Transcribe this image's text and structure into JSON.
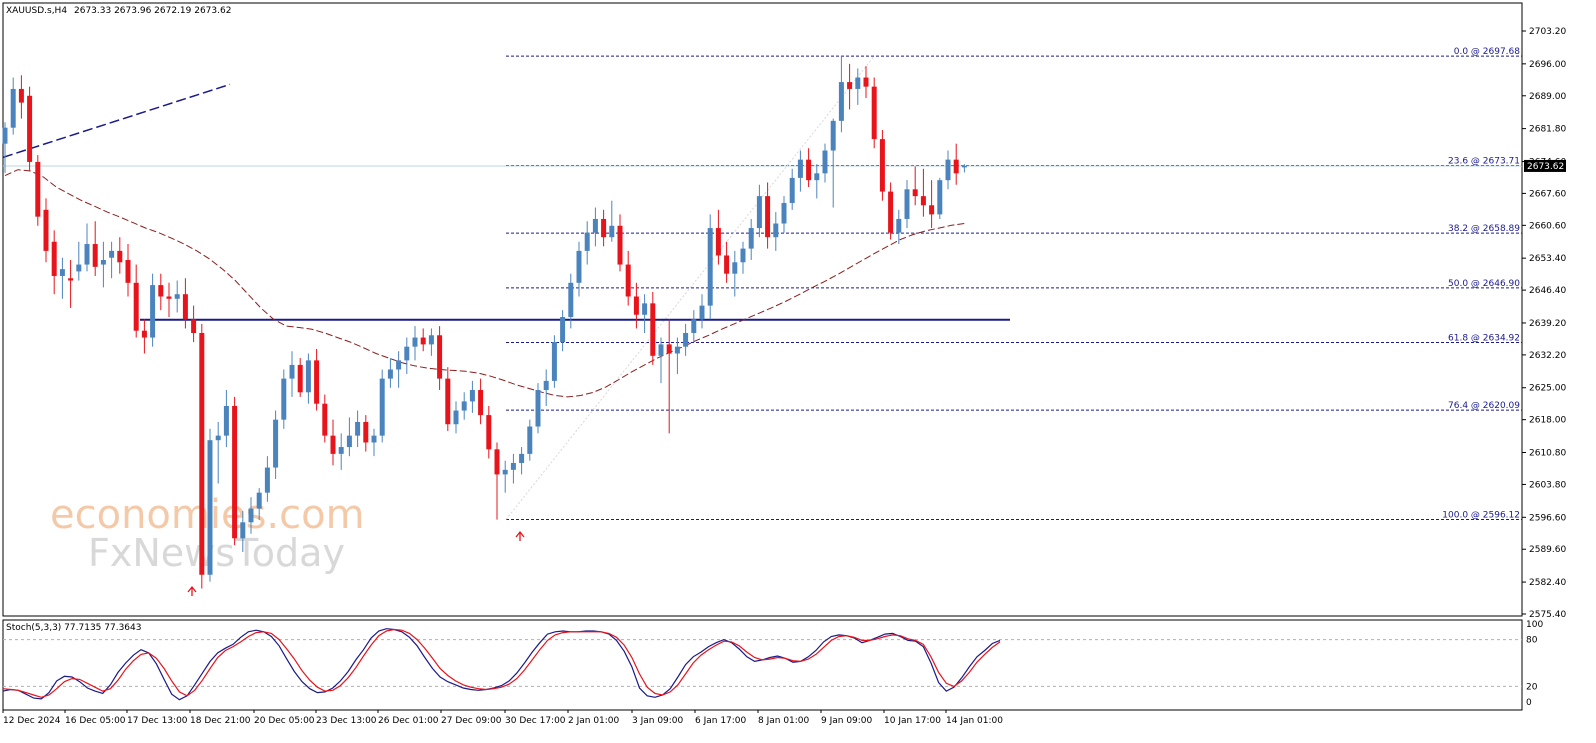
{
  "chart_data": [
    {
      "type": "candlestick",
      "symbol_label": "XAUUSD.s,H4",
      "ohlc_label": "2673.33 2673.96 2672.19 2673.62",
      "y_ticks": [
        "2703.20",
        "2696.00",
        "2689.00",
        "2681.80",
        "2674.60",
        "2667.60",
        "2660.60",
        "2653.40",
        "2646.40",
        "2639.20",
        "2632.20",
        "2625.00",
        "2618.00",
        "2610.80",
        "2603.80",
        "2596.60",
        "2589.60",
        "2582.40",
        "2575.40"
      ],
      "ylim": [
        2575.4,
        2703.2
      ],
      "current_price": "2673.62",
      "x_labels": [
        "12 Dec 2024",
        "16 Dec 05:00",
        "17 Dec 13:00",
        "18 Dec 21:00",
        "20 Dec 05:00",
        "23 Dec 13:00",
        "26 Dec 01:00",
        "27 Dec 09:00",
        "30 Dec 17:00",
        "2 Jan 01:00",
        "3 Jan 09:00",
        "6 Jan 17:00",
        "8 Jan 01:00",
        "9 Jan 09:00",
        "10 Jan 17:00",
        "14 Jan 01:00"
      ],
      "fib_levels": [
        {
          "label": "0.0 @ 2697.68",
          "value": 2697.68
        },
        {
          "label": "23.6 @ 2673.71",
          "value": 2673.71
        },
        {
          "label": "38.2 @ 2658.89",
          "value": 2658.89
        },
        {
          "label": "50.0 @ 2646.90",
          "value": 2646.9
        },
        {
          "label": "61.8 @ 2634.92",
          "value": 2634.92
        },
        {
          "label": "76.4 @ 2620.09",
          "value": 2620.09
        },
        {
          "label": "100.0 @ 2596.12",
          "value": 2596.12
        }
      ],
      "support_level": 2639.9,
      "colors": {
        "bull": "#4b84bd",
        "bear": "#e8141c",
        "ma": "#8c1c1c",
        "fib": "#1a1a8c",
        "trendline": "#1a1a8c"
      },
      "candles": [
        [
          2678.5,
          2683.2,
          2672.1,
          2682.0
        ],
        [
          2682.0,
          2693.0,
          2680.5,
          2690.5
        ],
        [
          2690.5,
          2693.5,
          2684.0,
          2687.5
        ],
        [
          2689.0,
          2691.0,
          2672.5,
          2674.5
        ],
        [
          2674.5,
          2676.0,
          2660.5,
          2662.5
        ],
        [
          2664.0,
          2666.5,
          2652.5,
          2655.0
        ],
        [
          2657.0,
          2659.5,
          2645.5,
          2649.5
        ],
        [
          2649.5,
          2653.5,
          2644.5,
          2651.0
        ],
        [
          2649.0,
          2653.0,
          2642.5,
          2648.5
        ],
        [
          2650.5,
          2657.0,
          2648.5,
          2652.0
        ],
        [
          2652.0,
          2661.0,
          2650.5,
          2656.5
        ],
        [
          2656.5,
          2661.5,
          2649.5,
          2651.5
        ],
        [
          2652.0,
          2657.0,
          2647.0,
          2653.0
        ],
        [
          2653.5,
          2657.0,
          2649.0,
          2655.0
        ],
        [
          2655.0,
          2658.0,
          2650.0,
          2652.5
        ],
        [
          2653.0,
          2656.5,
          2645.0,
          2648.0
        ],
        [
          2648.0,
          2652.0,
          2636.0,
          2637.5
        ],
        [
          2637.5,
          2640.0,
          2632.5,
          2636.0
        ],
        [
          2636.0,
          2650.0,
          2634.0,
          2647.5
        ],
        [
          2647.5,
          2650.0,
          2642.0,
          2645.0
        ],
        [
          2645.0,
          2648.0,
          2640.5,
          2644.5
        ],
        [
          2644.5,
          2648.5,
          2641.5,
          2645.5
        ],
        [
          2645.5,
          2649.0,
          2638.0,
          2640.0
        ],
        [
          2640.0,
          2643.0,
          2635.0,
          2637.0
        ],
        [
          2637.0,
          2639.0,
          2581.0,
          2584.0
        ],
        [
          2584.0,
          2616.0,
          2582.5,
          2613.5
        ],
        [
          2613.5,
          2617.5,
          2604.0,
          2614.5
        ],
        [
          2614.5,
          2624.5,
          2612.0,
          2621.0
        ],
        [
          2621.0,
          2623.0,
          2590.5,
          2592.0
        ],
        [
          2592.0,
          2598.0,
          2589.0,
          2595.5
        ],
        [
          2595.5,
          2601.0,
          2593.0,
          2598.5
        ],
        [
          2598.5,
          2603.0,
          2596.0,
          2602.0
        ],
        [
          2602.0,
          2610.0,
          2600.0,
          2607.5
        ],
        [
          2607.5,
          2620.0,
          2605.0,
          2618.0
        ],
        [
          2618.0,
          2629.0,
          2616.0,
          2627.0
        ],
        [
          2627.0,
          2633.0,
          2623.0,
          2630.0
        ],
        [
          2630.0,
          2631.5,
          2623.0,
          2624.0
        ],
        [
          2624.0,
          2632.5,
          2621.5,
          2631.0
        ],
        [
          2631.0,
          2633.5,
          2620.0,
          2621.5
        ],
        [
          2621.5,
          2623.5,
          2613.0,
          2614.5
        ],
        [
          2614.5,
          2618.0,
          2608.0,
          2610.5
        ],
        [
          2610.5,
          2615.0,
          2607.0,
          2612.0
        ],
        [
          2612.0,
          2618.5,
          2610.0,
          2614.5
        ],
        [
          2614.5,
          2620.0,
          2612.0,
          2617.5
        ],
        [
          2617.5,
          2619.0,
          2611.0,
          2613.0
        ],
        [
          2613.0,
          2616.0,
          2610.0,
          2614.5
        ],
        [
          2614.5,
          2629.0,
          2613.0,
          2627.0
        ],
        [
          2627.0,
          2631.5,
          2625.0,
          2629.0
        ],
        [
          2629.0,
          2633.0,
          2625.0,
          2631.0
        ],
        [
          2631.0,
          2636.0,
          2628.0,
          2634.0
        ],
        [
          2634.0,
          2638.5,
          2631.0,
          2636.0
        ],
        [
          2636.0,
          2638.0,
          2633.0,
          2634.5
        ],
        [
          2634.5,
          2638.0,
          2632.0,
          2636.5
        ],
        [
          2636.5,
          2638.5,
          2624.5,
          2627.0
        ],
        [
          2627.0,
          2629.5,
          2615.5,
          2617.0
        ],
        [
          2617.0,
          2622.0,
          2615.0,
          2620.0
        ],
        [
          2620.0,
          2624.0,
          2618.0,
          2622.0
        ],
        [
          2622.0,
          2626.5,
          2619.5,
          2624.5
        ],
        [
          2624.5,
          2627.0,
          2617.0,
          2619.0
        ],
        [
          2619.0,
          2621.0,
          2609.5,
          2611.5
        ],
        [
          2611.5,
          2613.0,
          2596.1,
          2606.0
        ],
        [
          2606.0,
          2609.0,
          2602.0,
          2607.0
        ],
        [
          2607.0,
          2610.5,
          2604.0,
          2608.5
        ],
        [
          2608.5,
          2612.0,
          2606.0,
          2610.5
        ],
        [
          2610.5,
          2618.0,
          2609.0,
          2616.5
        ],
        [
          2616.5,
          2626.0,
          2615.0,
          2624.5
        ],
        [
          2624.5,
          2629.0,
          2621.0,
          2626.5
        ],
        [
          2626.5,
          2636.5,
          2625.0,
          2635.0
        ],
        [
          2635.0,
          2642.0,
          2633.0,
          2640.5
        ],
        [
          2640.5,
          2650.0,
          2638.0,
          2648.0
        ],
        [
          2648.0,
          2657.0,
          2645.0,
          2655.0
        ],
        [
          2655.0,
          2661.5,
          2652.0,
          2659.0
        ],
        [
          2659.0,
          2664.5,
          2656.0,
          2662.0
        ],
        [
          2662.0,
          2664.0,
          2656.0,
          2658.0
        ],
        [
          2658.0,
          2666.0,
          2657.0,
          2660.5
        ],
        [
          2660.5,
          2663.0,
          2650.5,
          2652.0
        ],
        [
          2652.0,
          2655.0,
          2643.0,
          2645.0
        ],
        [
          2645.0,
          2648.0,
          2638.0,
          2641.0
        ],
        [
          2641.0,
          2645.5,
          2637.0,
          2643.5
        ],
        [
          2643.5,
          2646.0,
          2630.0,
          2632.0
        ],
        [
          2632.0,
          2636.0,
          2626.0,
          2634.5
        ],
        [
          2634.5,
          2640.0,
          2615.0,
          2632.5
        ],
        [
          2632.5,
          2636.0,
          2628.0,
          2634.0
        ],
        [
          2634.0,
          2639.0,
          2632.0,
          2637.0
        ],
        [
          2637.0,
          2642.0,
          2635.0,
          2640.0
        ],
        [
          2640.0,
          2645.5,
          2638.0,
          2643.0
        ],
        [
          2643.0,
          2663.0,
          2640.0,
          2660.0
        ],
        [
          2660.0,
          2664.0,
          2652.0,
          2654.0
        ],
        [
          2654.0,
          2657.0,
          2648.0,
          2650.0
        ],
        [
          2650.0,
          2655.0,
          2645.0,
          2652.5
        ],
        [
          2652.5,
          2657.0,
          2650.0,
          2655.5
        ],
        [
          2655.5,
          2662.0,
          2653.0,
          2660.0
        ],
        [
          2660.0,
          2669.5,
          2658.0,
          2667.0
        ],
        [
          2667.0,
          2670.0,
          2655.5,
          2658.0
        ],
        [
          2658.0,
          2663.5,
          2655.0,
          2661.0
        ],
        [
          2661.0,
          2667.0,
          2659.0,
          2665.5
        ],
        [
          2665.5,
          2673.0,
          2664.0,
          2671.0
        ],
        [
          2671.0,
          2677.0,
          2668.0,
          2675.0
        ],
        [
          2675.0,
          2677.5,
          2669.0,
          2670.5
        ],
        [
          2670.5,
          2674.0,
          2666.5,
          2672.0
        ],
        [
          2672.0,
          2678.5,
          2670.0,
          2677.0
        ],
        [
          2677.0,
          2684.0,
          2664.5,
          2683.5
        ],
        [
          2683.5,
          2697.7,
          2681.0,
          2692.0
        ],
        [
          2692.0,
          2696.0,
          2686.0,
          2690.5
        ],
        [
          2690.5,
          2695.0,
          2687.0,
          2693.0
        ],
        [
          2693.0,
          2695.5,
          2688.5,
          2691.0
        ],
        [
          2691.0,
          2693.0,
          2677.5,
          2679.5
        ],
        [
          2679.5,
          2681.5,
          2666.0,
          2668.0
        ],
        [
          2668.0,
          2670.0,
          2657.5,
          2659.0
        ],
        [
          2659.0,
          2664.0,
          2656.5,
          2662.0
        ],
        [
          2662.0,
          2670.5,
          2660.0,
          2668.5
        ],
        [
          2668.5,
          2673.5,
          2665.0,
          2667.0
        ],
        [
          2667.0,
          2673.0,
          2662.5,
          2665.0
        ],
        [
          2665.0,
          2670.5,
          2660.0,
          2663.0
        ],
        [
          2663.0,
          2671.0,
          2662.0,
          2670.5
        ],
        [
          2670.5,
          2677.0,
          2668.5,
          2675.0
        ],
        [
          2675.0,
          2678.5,
          2669.5,
          2672.0
        ],
        [
          2673.3,
          2674.0,
          2672.2,
          2673.6
        ]
      ],
      "ma": [
        2671.5,
        2672.8,
        2672.5,
        2671.2,
        2669.0,
        2667.5,
        2666.0,
        2664.8,
        2663.5,
        2662.4,
        2661.2,
        2660.0,
        2659.0,
        2657.8,
        2656.5,
        2655.0,
        2653.2,
        2651.0,
        2648.5,
        2645.5,
        2642.5,
        2640.0,
        2638.5,
        2638.2,
        2637.8,
        2637.0,
        2636.0,
        2635.0,
        2633.8,
        2632.5,
        2631.5,
        2630.5,
        2629.8,
        2629.3,
        2629.0,
        2628.8,
        2628.6,
        2628.2,
        2627.5,
        2626.6,
        2625.6,
        2624.8,
        2624.0,
        2623.3,
        2623.0,
        2623.3,
        2624.0,
        2625.2,
        2626.8,
        2628.5,
        2630.0,
        2631.5,
        2632.8,
        2634.0,
        2635.3,
        2636.5,
        2637.8,
        2639.0,
        2640.2,
        2641.4,
        2642.6,
        2643.9,
        2645.3,
        2646.8,
        2648.2,
        2649.7,
        2651.3,
        2652.9,
        2654.5,
        2656.0,
        2657.5,
        2658.6,
        2659.4,
        2660.0,
        2660.6,
        2661.0
      ]
    },
    {
      "type": "line",
      "title": "Stoch(5,3,3) 77.7135 77.3643",
      "y_ticks": [
        "100",
        "80",
        "20",
        "0"
      ],
      "ylim": [
        0,
        100
      ],
      "levels": [
        80,
        20
      ],
      "series": [
        {
          "color": "#1a1a8c",
          "values": [
            14,
            16,
            15,
            10,
            5,
            4,
            12,
            27,
            33,
            32,
            26,
            18,
            14,
            11,
            22,
            38,
            50,
            60,
            67,
            63,
            49,
            29,
            10,
            3,
            8,
            22,
            37,
            52,
            63,
            69,
            74,
            83,
            90,
            92,
            90,
            84,
            72,
            55,
            39,
            26,
            17,
            12,
            13,
            18,
            27,
            39,
            54,
            67,
            82,
            91,
            94,
            93,
            90,
            83,
            72,
            57,
            43,
            32,
            26,
            22,
            18,
            16,
            15,
            16,
            18,
            21,
            27,
            37,
            50,
            64,
            76,
            87,
            90,
            91,
            90,
            90,
            91,
            91,
            90,
            87,
            79,
            65,
            45,
            18,
            8,
            6,
            9,
            17,
            32,
            48,
            58,
            64,
            71,
            76,
            80,
            76,
            68,
            58,
            52,
            54,
            57,
            59,
            56,
            51,
            52,
            58,
            66,
            77,
            84,
            86,
            85,
            82,
            76,
            79,
            83,
            87,
            88,
            84,
            79,
            78,
            71,
            50,
            25,
            14,
            19,
            31,
            45,
            58,
            66,
            75,
            79
          ]
        },
        {
          "color": "#e8141c",
          "values": [
            17,
            16,
            15,
            12,
            9,
            6,
            9,
            17,
            26,
            30,
            29,
            24,
            19,
            14,
            17,
            28,
            42,
            53,
            61,
            63,
            56,
            43,
            27,
            13,
            8,
            15,
            28,
            43,
            57,
            66,
            71,
            77,
            84,
            89,
            90,
            88,
            80,
            68,
            55,
            40,
            28,
            19,
            14,
            15,
            21,
            31,
            44,
            59,
            73,
            85,
            91,
            93,
            92,
            88,
            80,
            69,
            56,
            43,
            34,
            27,
            22,
            19,
            17,
            16,
            17,
            19,
            23,
            30,
            41,
            54,
            67,
            79,
            86,
            89,
            90,
            90,
            90,
            90,
            90,
            88,
            83,
            73,
            57,
            36,
            19,
            11,
            9,
            13,
            22,
            36,
            50,
            60,
            67,
            73,
            78,
            77,
            72,
            64,
            57,
            54,
            55,
            57,
            56,
            53,
            52,
            55,
            61,
            70,
            79,
            84,
            85,
            83,
            79,
            79,
            81,
            84,
            86,
            85,
            81,
            79,
            74,
            58,
            38,
            24,
            20,
            27,
            38,
            51,
            61,
            70,
            77
          ]
        }
      ]
    }
  ],
  "watermark": {
    "line1": "economies.com",
    "line2": "FxNewsToday"
  }
}
